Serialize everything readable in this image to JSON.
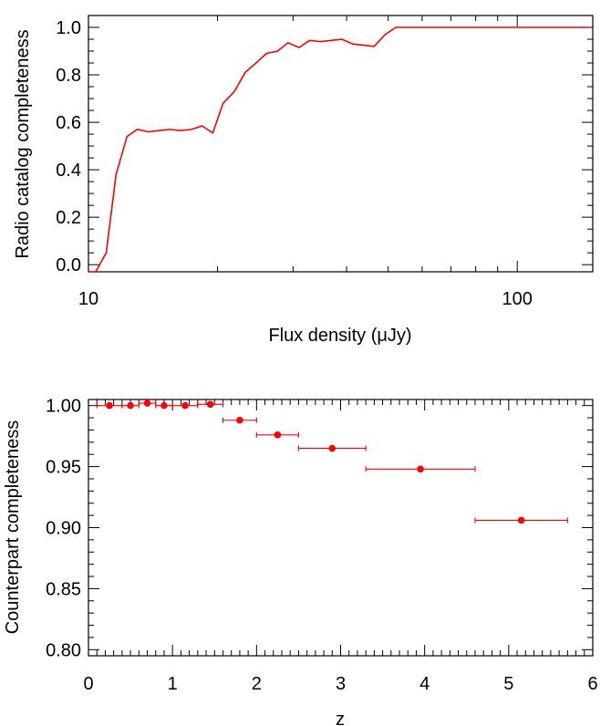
{
  "chart_data": [
    {
      "type": "line",
      "xlabel": "Flux density (μJy)",
      "ylabel": "Radio catalog completeness",
      "xscale": "log",
      "xlim": [
        10,
        150
      ],
      "ylim": [
        -0.03,
        1.05
      ],
      "xticks": [
        {
          "value": 10,
          "label": "10"
        },
        {
          "value": 100,
          "label": "100"
        }
      ],
      "yticks": [
        {
          "value": 0.0,
          "label": "0.0"
        },
        {
          "value": 0.2,
          "label": "0.2"
        },
        {
          "value": 0.4,
          "label": "0.4"
        },
        {
          "value": 0.6,
          "label": "0.6"
        },
        {
          "value": 0.8,
          "label": "0.8"
        },
        {
          "value": 1.0,
          "label": "1.0"
        }
      ],
      "color": "#ff0000",
      "grid": false,
      "series": [
        {
          "x": [
            10.0,
            10.4,
            11.0,
            11.6,
            12.3,
            13.0,
            13.8,
            14.6,
            15.5,
            16.4,
            17.4,
            18.4,
            19.5,
            20.6,
            21.9,
            23.2,
            24.6,
            26.0,
            27.6,
            29.2,
            31.0,
            32.8,
            34.8,
            36.8,
            39.0,
            41.3,
            43.8,
            46.4,
            49.2,
            52.1,
            55.2,
            58.5,
            62.0,
            65.7,
            69.6,
            73.7,
            78.1,
            82.8,
            87.7,
            92.9,
            98.4,
            104.3,
            110.5,
            117.1,
            124.0,
            131.4,
            139.2,
            147.5
          ],
          "y": [
            -0.03,
            -0.03,
            0.05,
            0.38,
            0.54,
            0.57,
            0.56,
            0.565,
            0.57,
            0.565,
            0.57,
            0.585,
            0.555,
            0.68,
            0.73,
            0.81,
            0.85,
            0.89,
            0.9,
            0.935,
            0.915,
            0.945,
            0.94,
            0.945,
            0.95,
            0.93,
            0.925,
            0.92,
            0.97,
            1.0,
            1.0,
            1.0,
            1.0,
            1.0,
            1.0,
            1.0,
            1.0,
            1.0,
            1.0,
            1.0,
            1.0,
            1.0,
            1.0,
            1.0,
            1.0,
            1.0,
            1.0,
            1.0
          ]
        }
      ]
    },
    {
      "type": "scatter",
      "xlabel": "z",
      "ylabel": "Counterpart completeness",
      "xlim": [
        0,
        6
      ],
      "ylim": [
        0.795,
        1.005
      ],
      "xticks": [
        {
          "value": 0,
          "label": "0"
        },
        {
          "value": 1,
          "label": "1"
        },
        {
          "value": 2,
          "label": "2"
        },
        {
          "value": 3,
          "label": "3"
        },
        {
          "value": 4,
          "label": "4"
        },
        {
          "value": 5,
          "label": "5"
        },
        {
          "value": 6,
          "label": "6"
        }
      ],
      "yticks": [
        {
          "value": 0.8,
          "label": "0.80"
        },
        {
          "value": 0.85,
          "label": "0.85"
        },
        {
          "value": 0.9,
          "label": "0.90"
        },
        {
          "value": 0.95,
          "label": "0.95"
        },
        {
          "value": 1.0,
          "label": "1.00"
        }
      ],
      "color": "#ff0000",
      "grid": false,
      "points": [
        {
          "x": 0.25,
          "y": 1.0,
          "xerr_low": 0.1,
          "xerr_high": 0.4
        },
        {
          "x": 0.5,
          "y": 1.0,
          "xerr_low": 0.4,
          "xerr_high": 0.6
        },
        {
          "x": 0.7,
          "y": 1.002,
          "xerr_low": 0.6,
          "xerr_high": 0.8
        },
        {
          "x": 0.9,
          "y": 1.0,
          "xerr_low": 0.8,
          "xerr_high": 1.0
        },
        {
          "x": 1.15,
          "y": 1.0,
          "xerr_low": 1.0,
          "xerr_high": 1.3
        },
        {
          "x": 1.45,
          "y": 1.001,
          "xerr_low": 1.3,
          "xerr_high": 1.6
        },
        {
          "x": 1.8,
          "y": 0.988,
          "xerr_low": 1.6,
          "xerr_high": 2.0
        },
        {
          "x": 2.25,
          "y": 0.976,
          "xerr_low": 2.0,
          "xerr_high": 2.5
        },
        {
          "x": 2.9,
          "y": 0.965,
          "xerr_low": 2.5,
          "xerr_high": 3.3
        },
        {
          "x": 3.95,
          "y": 0.948,
          "xerr_low": 3.3,
          "xerr_high": 4.6
        },
        {
          "x": 5.15,
          "y": 0.906,
          "xerr_low": 4.6,
          "xerr_high": 5.7
        }
      ]
    }
  ]
}
